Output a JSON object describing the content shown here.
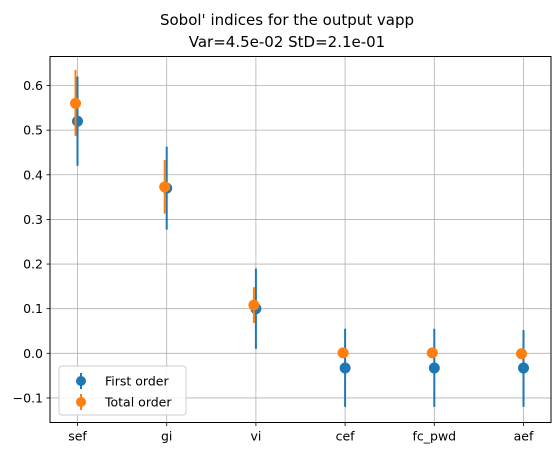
{
  "chart_data": {
    "type": "scatter",
    "title_lines": [
      "Sobol' indices for the output vapp",
      "Var=4.5e-02    StD=2.1e-01"
    ],
    "xlabel": "",
    "ylabel": "",
    "categories": [
      "sef",
      "gi",
      "vi",
      "cef",
      "fc_pwd",
      "aef"
    ],
    "ylim": [
      -0.155,
      0.665
    ],
    "yticks": [
      -0.1,
      0.0,
      0.1,
      0.2,
      0.3,
      0.4,
      0.5,
      0.6
    ],
    "ytick_labels": [
      "−0.1",
      "0.0",
      "0.1",
      "0.2",
      "0.3",
      "0.4",
      "0.5",
      "0.6"
    ],
    "grid": true,
    "legend_position": "lower-left",
    "series": [
      {
        "name": "First order",
        "color": "#1f77b4",
        "values": [
          0.52,
          0.37,
          0.1,
          -0.033,
          -0.033,
          -0.033
        ],
        "lower": [
          0.42,
          0.277,
          0.01,
          -0.12,
          -0.12,
          -0.12
        ],
        "upper": [
          0.62,
          0.463,
          0.19,
          0.055,
          0.055,
          0.052
        ]
      },
      {
        "name": "Total order",
        "color": "#ff7f0e",
        "values": [
          0.56,
          0.373,
          0.108,
          0.001,
          0.001,
          -0.001
        ],
        "lower": [
          0.487,
          0.313,
          0.068,
          -0.002,
          -0.002,
          -0.004
        ],
        "upper": [
          0.635,
          0.433,
          0.148,
          0.004,
          0.004,
          0.002
        ]
      }
    ]
  }
}
